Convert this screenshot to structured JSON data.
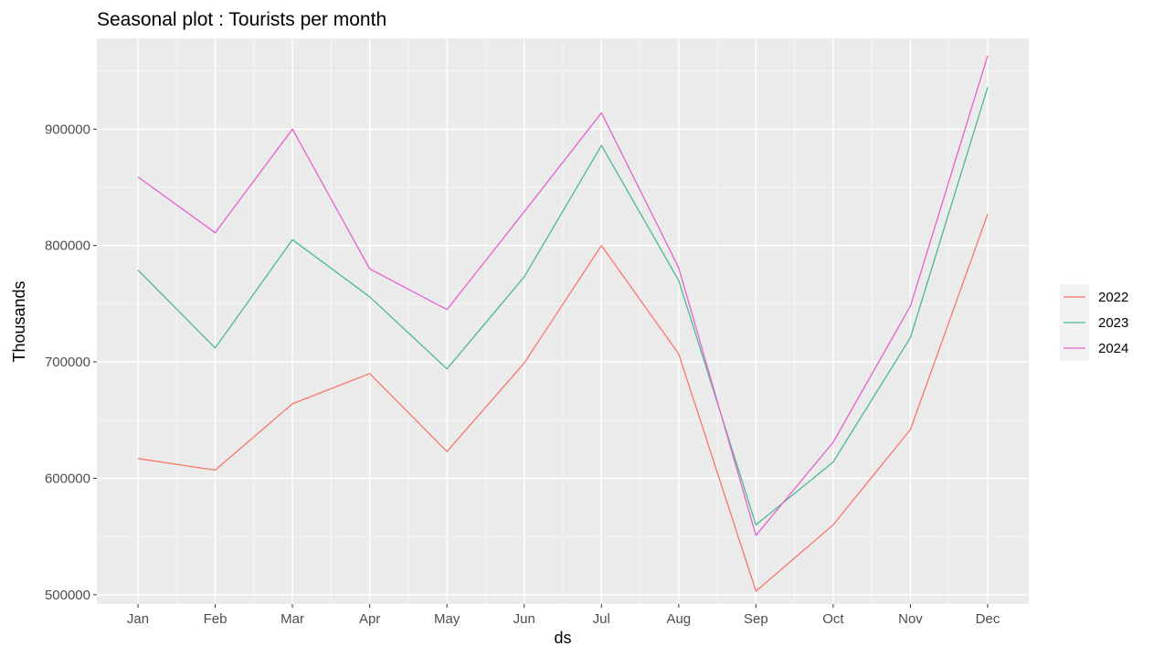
{
  "chart_data": {
    "type": "line",
    "title": "Seasonal plot : Tourists per month",
    "xlabel": "ds",
    "ylabel": "Thousands",
    "categories": [
      "Jan",
      "Feb",
      "Mar",
      "Apr",
      "May",
      "Jun",
      "Jul",
      "Aug",
      "Sep",
      "Oct",
      "Nov",
      "Dec"
    ],
    "ylim": [
      492000,
      978000
    ],
    "yticks": [
      500000,
      600000,
      700000,
      800000,
      900000
    ],
    "ytick_labels": [
      "500000",
      "600000",
      "700000",
      "800000",
      "900000"
    ],
    "grid": true,
    "legend_position": "right",
    "series": [
      {
        "name": "2022",
        "color": "#F8766D",
        "values": [
          617000,
          607000,
          664000,
          690000,
          623000,
          699000,
          800000,
          707000,
          503000,
          560000,
          642000,
          827000
        ]
      },
      {
        "name": "2023",
        "color": "#4DB894",
        "values": [
          779000,
          712000,
          805000,
          756000,
          694000,
          773000,
          886000,
          770000,
          560000,
          614000,
          721000,
          936000
        ]
      },
      {
        "name": "2024",
        "color": "#E75FD2",
        "values": [
          859000,
          811000,
          900000,
          780000,
          745000,
          829000,
          914000,
          781000,
          551000,
          631000,
          748000,
          963000
        ]
      }
    ]
  }
}
